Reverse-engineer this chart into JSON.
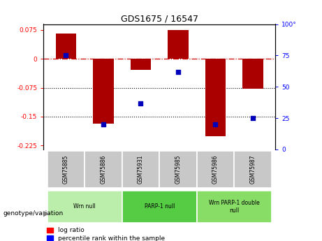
{
  "title": "GDS1675 / 16547",
  "samples": [
    "GSM75885",
    "GSM75886",
    "GSM75931",
    "GSM75985",
    "GSM75986",
    "GSM75987"
  ],
  "log_ratio": [
    0.065,
    -0.168,
    -0.028,
    0.075,
    -0.2,
    -0.078
  ],
  "percentile_rank": [
    75,
    20,
    37,
    62,
    20,
    25
  ],
  "ylim_left": [
    -0.235,
    0.09
  ],
  "ylim_right": [
    0,
    100
  ],
  "yticks_left": [
    0.075,
    0,
    -0.075,
    -0.15,
    -0.225
  ],
  "yticks_right": [
    100,
    75,
    50,
    25,
    0
  ],
  "groups": [
    {
      "label": "Wrn null",
      "start": 0,
      "end": 2,
      "color": "#bbeeaa"
    },
    {
      "label": "PARP-1 null",
      "start": 2,
      "end": 4,
      "color": "#55cc44"
    },
    {
      "label": "Wrn PARP-1 double\nnull",
      "start": 4,
      "end": 6,
      "color": "#88dd66"
    }
  ],
  "bar_color": "#aa0000",
  "dot_color": "#0000bb",
  "hline_color": "#cc0000",
  "dotline_color": "black",
  "legend_red_label": "log ratio",
  "legend_blue_label": "percentile rank within the sample",
  "sample_box_color": "#c8c8c8",
  "genotype_label": "genotype/variation"
}
